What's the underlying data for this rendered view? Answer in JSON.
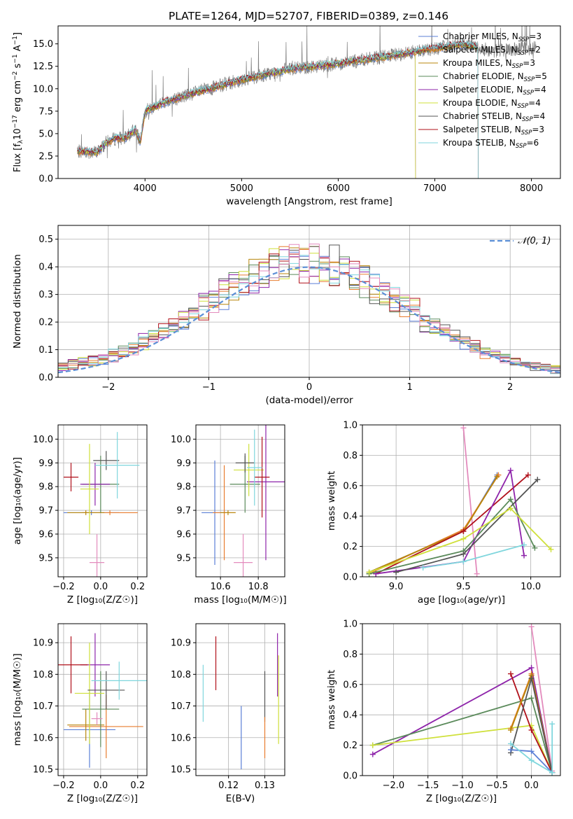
{
  "figure": {
    "title": "PLATE=1264, MJD=52707, FIBERID=0389, z=0.146"
  },
  "series": [
    {
      "key": "chab-miles",
      "label": "Chabrier MILES, N",
      "sub": "SSP",
      "n": "=3",
      "color": "#5b7fd6"
    },
    {
      "key": "salp-miles",
      "label": "Salpeter MILES, N",
      "sub": "SSP",
      "n": "=2",
      "color": "#e87c2e"
    },
    {
      "key": "krou-miles",
      "label": "Kroupa MILES, N",
      "sub": "SSP",
      "n": "=3",
      "color": "#b8860b"
    },
    {
      "key": "chab-elodie",
      "label": "Chabrier ELODIE, N",
      "sub": "SSP",
      "n": "=5",
      "color": "#5a8a5a"
    },
    {
      "key": "salp-elodie",
      "label": "Salpeter ELODIE, N",
      "sub": "SSP",
      "n": "=4",
      "color": "#8e24aa"
    },
    {
      "key": "krou-elodie",
      "label": "Kroupa ELODIE, N",
      "sub": "SSP",
      "n": "=4",
      "color": "#cfe03a"
    },
    {
      "key": "chab-stelib",
      "label": "Chabrier STELIB, N",
      "sub": "SSP",
      "n": "=4",
      "color": "#555555"
    },
    {
      "key": "salp-stelib",
      "label": "Salpeter STELIB, N",
      "sub": "SSP",
      "n": "=3",
      "color": "#b0101a"
    },
    {
      "key": "krou-stelib",
      "label": "Kroupa STELIB, N",
      "sub": "SSP",
      "n": "=6",
      "color": "#7fd6dd"
    }
  ],
  "extra_colors": {
    "pink": "#e38bbd",
    "data": "#808080",
    "normal": "#5b8fd6"
  },
  "chart_data": [
    {
      "id": "spectrum",
      "type": "line",
      "xlabel": "wavelength [Angstrom, rest frame]",
      "ylabel_parts": [
        "Flux [f",
        "λ",
        "10",
        "−17",
        " erg cm",
        "−2",
        " s",
        "−1",
        " A",
        "−1",
        "]"
      ],
      "xlim": [
        3100,
        8300
      ],
      "ylim": [
        0,
        17
      ],
      "xticks": [
        4000,
        5000,
        6000,
        7000,
        8000
      ],
      "yticks": [
        0.0,
        2.5,
        5.0,
        7.5,
        10.0,
        12.5,
        15.0
      ],
      "ytick_labels": [
        "0.0",
        "2.5",
        "5.0",
        "7.5",
        "10.0",
        "12.5",
        "15.0"
      ],
      "continuum_x": [
        3300,
        3400,
        3500,
        3600,
        3700,
        3800,
        3900,
        3950,
        4000,
        4200,
        4500,
        5000,
        5500,
        6000,
        6500,
        7000,
        7300,
        7600,
        8000
      ],
      "continuum_y": [
        3.0,
        3.0,
        2.9,
        4.0,
        4.5,
        4.5,
        5.5,
        4.0,
        7.5,
        8.5,
        9.5,
        11.0,
        12.2,
        12.8,
        13.6,
        14.5,
        15.0,
        14.2,
        14.5
      ],
      "model_xrange": [
        3300,
        7450
      ],
      "data_xrange": [
        3300,
        8050
      ],
      "legend_position": "upper right",
      "grid": false
    },
    {
      "id": "residuals",
      "type": "histogram",
      "xlabel": "(data-model)/error",
      "ylabel": "Normed distribution",
      "xlim": [
        -2.5,
        2.5
      ],
      "ylim": [
        0,
        0.55
      ],
      "xticks": [
        -2,
        -1,
        0,
        1,
        2
      ],
      "xtick_labels": [
        "−2",
        "−1",
        "0",
        "1",
        "2"
      ],
      "yticks": [
        0.0,
        0.1,
        0.2,
        0.3,
        0.4,
        0.5
      ],
      "ytick_labels": [
        "0.0",
        "0.1",
        "0.2",
        "0.3",
        "0.4",
        "0.5"
      ],
      "bin_width": 0.1,
      "base_curve": {
        "mu": -0.05,
        "sigma": 1.0,
        "amp": 1.0
      },
      "normal_legend": "𝒩(0, 1)",
      "legend_position": "upper right",
      "grid": true
    },
    {
      "id": "age-vs-Z",
      "type": "errorbar",
      "xlabel": "Z [log₁₀(Z/Z☉)]",
      "ylabel": "age  [log₁₀(age/yr)]",
      "xlim": [
        -0.23,
        0.25
      ],
      "ylim": [
        9.42,
        10.06
      ],
      "xticks": [
        -0.2,
        0.0,
        0.2
      ],
      "xtick_labels": [
        "−0.2",
        "0.0",
        "0.2"
      ],
      "yticks": [
        9.5,
        9.6,
        9.7,
        9.8,
        9.9,
        10.0
      ],
      "ytick_labels": [
        "9.5",
        "9.6",
        "9.7",
        "9.8",
        "9.9",
        "10.0"
      ],
      "grid": true,
      "points": [
        {
          "c": "#5b7fd6",
          "x": -0.05,
          "xerr": 0.15,
          "y": 9.69,
          "yerr": 0.01
        },
        {
          "c": "#e87c2e",
          "x": 0.05,
          "xerr": 0.15,
          "y": 9.69,
          "yerr": 0.01
        },
        {
          "c": "#b8860b",
          "x": -0.08,
          "xerr": 0.1,
          "y": 9.69,
          "yerr": 0.01
        },
        {
          "c": "#5a8a5a",
          "x": 0.0,
          "xerr": 0.1,
          "y": 9.81,
          "yerr": 0.12
        },
        {
          "c": "#8e24aa",
          "x": -0.03,
          "xerr": 0.08,
          "y": 9.81,
          "yerr": 0.09
        },
        {
          "c": "#cfe03a",
          "x": -0.06,
          "xerr": 0.05,
          "y": 9.79,
          "yerr": 0.19
        },
        {
          "c": "#555555",
          "x": 0.03,
          "xerr": 0.07,
          "y": 9.91,
          "yerr": 0.04
        },
        {
          "c": "#b0101a",
          "x": -0.16,
          "xerr": 0.04,
          "y": 9.84,
          "yerr": 0.06
        },
        {
          "c": "#7fd6dd",
          "x": 0.09,
          "xerr": 0.12,
          "y": 9.89,
          "yerr": 0.14
        },
        {
          "c": "#e38bbd",
          "x": -0.02,
          "xerr": 0.04,
          "y": 9.48,
          "yerr": 0.12
        }
      ]
    },
    {
      "id": "age-vs-mass",
      "type": "errorbar",
      "xlabel": "mass [log₁₀(M/M☉)]",
      "ylabel": "",
      "xlim": [
        10.47,
        10.94
      ],
      "ylim": [
        9.42,
        10.06
      ],
      "xticks": [
        10.6,
        10.8
      ],
      "xtick_labels": [
        "10.6",
        "10.8"
      ],
      "yticks": [
        9.5,
        9.6,
        9.7,
        9.8,
        9.9,
        10.0
      ],
      "ytick_labels": [
        "9.5",
        "9.6",
        "9.7",
        "9.8",
        "9.9",
        "10.0"
      ],
      "grid": true,
      "points": [
        {
          "c": "#5b7fd6",
          "x": 10.57,
          "xerr": 0.07,
          "y": 9.69,
          "yerr": 0.22
        },
        {
          "c": "#e87c2e",
          "x": 10.62,
          "xerr": 0.06,
          "y": 9.69,
          "yerr": 0.2
        },
        {
          "c": "#b8860b",
          "x": 10.64,
          "xerr": 0.04,
          "y": 9.69,
          "yerr": 0.01
        },
        {
          "c": "#5a8a5a",
          "x": 10.73,
          "xerr": 0.08,
          "y": 9.81,
          "yerr": 0.12
        },
        {
          "c": "#8e24aa",
          "x": 10.84,
          "xerr": 0.1,
          "y": 9.82,
          "yerr": 0.33
        },
        {
          "c": "#cfe03a",
          "x": 10.75,
          "xerr": 0.08,
          "y": 9.87,
          "yerr": 0.11
        },
        {
          "c": "#555555",
          "x": 10.73,
          "xerr": 0.05,
          "y": 9.9,
          "yerr": 0.04
        },
        {
          "c": "#b0101a",
          "x": 10.82,
          "xerr": 0.04,
          "y": 9.84,
          "yerr": 0.17
        },
        {
          "c": "#7fd6dd",
          "x": 10.78,
          "xerr": 0.04,
          "y": 9.88,
          "yerr": 0.16
        },
        {
          "c": "#e38bbd",
          "x": 10.72,
          "xerr": 0.05,
          "y": 9.48,
          "yerr": 0.12
        }
      ]
    },
    {
      "id": "weight-vs-age",
      "type": "line",
      "xlabel": "age  [log₁₀(age/yr)]",
      "ylabel": "mass weight",
      "xlim": [
        8.75,
        10.22
      ],
      "ylim": [
        0,
        1
      ],
      "xticks": [
        9.0,
        9.5,
        10.0
      ],
      "xtick_labels": [
        "9.0",
        "9.5",
        "10.0"
      ],
      "yticks": [
        0.0,
        0.2,
        0.4,
        0.6,
        0.8,
        1.0
      ],
      "ytick_labels": [
        "0.0",
        "0.2",
        "0.4",
        "0.6",
        "0.8",
        "1.0"
      ],
      "grid": true,
      "lines": [
        {
          "c": "#e38bbd",
          "x": [
            9.5,
            9.6
          ],
          "y": [
            0.98,
            0.02
          ]
        },
        {
          "c": "#5b7fd6",
          "x": [
            8.8,
            9.5,
            9.75
          ],
          "y": [
            0.03,
            0.3,
            0.67
          ]
        },
        {
          "c": "#e87c2e",
          "x": [
            8.8,
            9.5,
            9.76
          ],
          "y": [
            0.02,
            0.31,
            0.67
          ]
        },
        {
          "c": "#b8860b",
          "x": [
            8.8,
            9.5,
            9.75
          ],
          "y": [
            0.03,
            0.3,
            0.66
          ]
        },
        {
          "c": "#b0101a",
          "x": [
            8.85,
            9.5,
            9.98
          ],
          "y": [
            0.02,
            0.3,
            0.67
          ]
        },
        {
          "c": "#8e24aa",
          "x": [
            8.85,
            9.5,
            9.85,
            9.95
          ],
          "y": [
            0.02,
            0.1,
            0.7,
            0.14
          ]
        },
        {
          "c": "#5a8a5a",
          "x": [
            8.8,
            9.5,
            9.85,
            10.03
          ],
          "y": [
            0.02,
            0.17,
            0.51,
            0.19
          ]
        },
        {
          "c": "#555555",
          "x": [
            9.0,
            9.5,
            10.05
          ],
          "y": [
            0.03,
            0.15,
            0.64
          ]
        },
        {
          "c": "#cfe03a",
          "x": [
            8.8,
            9.5,
            9.85,
            10.15
          ],
          "y": [
            0.03,
            0.25,
            0.45,
            0.18
          ]
        },
        {
          "c": "#7fd6dd",
          "x": [
            9.2,
            9.5,
            9.95
          ],
          "y": [
            0.06,
            0.1,
            0.21
          ]
        }
      ]
    },
    {
      "id": "mass-vs-Z",
      "type": "errorbar",
      "xlabel": "Z [log₁₀(Z/Z☉)]",
      "ylabel": "mass [log₁₀(M/M☉)]",
      "xlim": [
        -0.23,
        0.25
      ],
      "ylim": [
        10.48,
        10.96
      ],
      "xticks": [
        -0.2,
        0.0,
        0.2
      ],
      "xtick_labels": [
        "−0.2",
        "0.0",
        "0.2"
      ],
      "yticks": [
        10.5,
        10.6,
        10.7,
        10.8,
        10.9
      ],
      "ytick_labels": [
        "10.5",
        "10.6",
        "10.7",
        "10.8",
        "10.9"
      ],
      "grid": true,
      "points": [
        {
          "c": "#5b7fd6",
          "x": -0.06,
          "xerr": 0.14,
          "y": 10.625,
          "yerr": 0.12
        },
        {
          "c": "#e87c2e",
          "x": 0.03,
          "xerr": 0.2,
          "y": 10.635,
          "yerr": 0.1
        },
        {
          "c": "#b8860b",
          "x": -0.08,
          "xerr": 0.1,
          "y": 10.64,
          "yerr": 0.05
        },
        {
          "c": "#5a8a5a",
          "x": 0.0,
          "xerr": 0.1,
          "y": 10.69,
          "yerr": 0.12
        },
        {
          "c": "#8e24aa",
          "x": -0.03,
          "xerr": 0.08,
          "y": 10.83,
          "yerr": 0.1
        },
        {
          "c": "#cfe03a",
          "x": -0.06,
          "xerr": 0.08,
          "y": 10.74,
          "yerr": 0.16
        },
        {
          "c": "#555555",
          "x": 0.03,
          "xerr": 0.1,
          "y": 10.75,
          "yerr": 0.06
        },
        {
          "c": "#b0101a",
          "x": -0.16,
          "xerr": 0.09,
          "y": 10.83,
          "yerr": 0.09
        },
        {
          "c": "#7fd6dd",
          "x": 0.1,
          "xerr": 0.15,
          "y": 10.78,
          "yerr": 0.06
        },
        {
          "c": "#e38bbd",
          "x": -0.02,
          "xerr": 0.03,
          "y": 10.66,
          "yerr": 0.02
        }
      ]
    },
    {
      "id": "mass-vs-EBV",
      "type": "errorbar",
      "xlabel": "E(B-V)",
      "ylabel": "",
      "xlim": [
        0.111,
        0.1355
      ],
      "ylim": [
        10.48,
        10.96
      ],
      "xticks": [
        0.12,
        0.13
      ],
      "xtick_labels": [
        "0.12",
        "0.13"
      ],
      "yticks": [
        10.5,
        10.6,
        10.7,
        10.8,
        10.9
      ],
      "ytick_labels": [
        "10.5",
        "10.6",
        "10.7",
        "10.8",
        "10.9"
      ],
      "grid": true,
      "points": [
        {
          "c": "#7fd6dd",
          "x": 0.113,
          "xerr": 0,
          "y": 10.74,
          "yerr": 0.09
        },
        {
          "c": "#b0101a",
          "x": 0.1165,
          "xerr": 0,
          "y": 10.835,
          "yerr": 0.085
        },
        {
          "c": "#5b7fd6",
          "x": 0.1235,
          "xerr": 0,
          "y": 10.6,
          "yerr": 0.1
        },
        {
          "c": "#555555",
          "x": 0.13,
          "xerr": 0,
          "y": 10.73,
          "yerr": 0.08
        },
        {
          "c": "#e87c2e",
          "x": 0.13,
          "xerr": 0,
          "y": 10.6,
          "yerr": 0.065
        },
        {
          "c": "#8e24aa",
          "x": 0.1335,
          "xerr": 0,
          "y": 10.83,
          "yerr": 0.1
        },
        {
          "c": "#cfe03a",
          "x": 0.1338,
          "xerr": 0,
          "y": 10.72,
          "yerr": 0.14
        }
      ]
    },
    {
      "id": "weight-vs-Z",
      "type": "line",
      "xlabel": "Z [log₁₀(Z/Z☉)]",
      "ylabel": "mass weight",
      "xlim": [
        -2.45,
        0.42
      ],
      "ylim": [
        0,
        1
      ],
      "xticks": [
        -2.0,
        -1.5,
        -1.0,
        -0.5,
        0.0
      ],
      "xtick_labels": [
        "−2.0",
        "−1.5",
        "−1.0",
        "−0.5",
        "0.0"
      ],
      "yticks": [
        0.0,
        0.2,
        0.4,
        0.6,
        0.8,
        1.0
      ],
      "ytick_labels": [
        "0.0",
        "0.2",
        "0.4",
        "0.6",
        "0.8",
        "1.0"
      ],
      "grid": true,
      "lines": [
        {
          "c": "#e38bbd",
          "x": [
            0.0,
            0.3
          ],
          "y": [
            0.98,
            0.03
          ]
        },
        {
          "c": "#8e24aa",
          "x": [
            -2.3,
            0.0,
            0.3
          ],
          "y": [
            0.14,
            0.71,
            0.02
          ]
        },
        {
          "c": "#5a8a5a",
          "x": [
            -2.3,
            0.0,
            0.3
          ],
          "y": [
            0.2,
            0.51,
            0.02
          ]
        },
        {
          "c": "#cfe03a",
          "x": [
            -2.3,
            0.0,
            0.3
          ],
          "y": [
            0.2,
            0.33,
            0.02
          ]
        },
        {
          "c": "#b0101a",
          "x": [
            -0.3,
            0.0,
            0.3
          ],
          "y": [
            0.67,
            0.3,
            0.02
          ]
        },
        {
          "c": "#e87c2e",
          "x": [
            -0.3,
            0.0,
            0.3
          ],
          "y": [
            0.31,
            0.67,
            0.02
          ]
        },
        {
          "c": "#b8860b",
          "x": [
            -0.3,
            0.0,
            0.3
          ],
          "y": [
            0.3,
            0.66,
            0.02
          ]
        },
        {
          "c": "#555555",
          "x": [
            -0.3,
            0.0,
            0.3
          ],
          "y": [
            0.15,
            0.64,
            0.02
          ]
        },
        {
          "c": "#5b7fd6",
          "x": [
            -0.3,
            0.0,
            0.3
          ],
          "y": [
            0.17,
            0.16,
            0.02
          ]
        },
        {
          "c": "#7fd6dd",
          "x": [
            -0.3,
            0.0,
            0.3,
            0.3
          ],
          "y": [
            0.21,
            0.1,
            0.02,
            0.34
          ]
        }
      ]
    }
  ]
}
